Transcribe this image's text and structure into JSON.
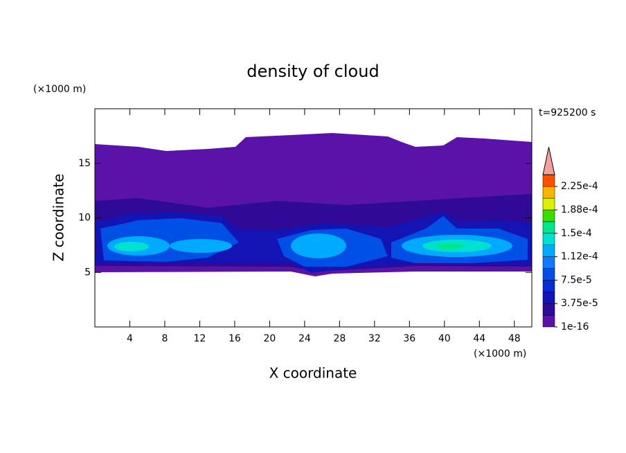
{
  "chart_data": {
    "type": "contour",
    "title": "density of cloud",
    "x_label": "X coordinate",
    "y_label": "Z coordinate",
    "x_unit": "(×1000 m)",
    "y_unit": "(×1000 m)",
    "time_label": "t=925200 s",
    "xlim": [
      0,
      50
    ],
    "xticks": [
      4,
      8,
      12,
      16,
      20,
      24,
      28,
      32,
      36,
      40,
      44,
      48
    ],
    "ylim": [
      0,
      20
    ],
    "yticks": [
      5,
      10,
      15
    ],
    "colorbar": {
      "clim": [
        1e-16,
        0.00024375
      ],
      "ticks": [
        {
          "value": 1e-16,
          "label": "1e-16"
        },
        {
          "value": 3.75e-05,
          "label": "3.75e-5"
        },
        {
          "value": 7.5e-05,
          "label": "7.5e-5"
        },
        {
          "value": 0.0001125,
          "label": "1.12e-4"
        },
        {
          "value": 0.00015,
          "label": "1.5e-4"
        },
        {
          "value": 0.0001875,
          "label": "1.88e-4"
        },
        {
          "value": 0.000225,
          "label": "2.25e-4"
        }
      ],
      "colors": [
        "#5a12a8",
        "#2e0a96",
        "#1414b4",
        "#0a2ad2",
        "#0050e6",
        "#1478ff",
        "#00aaff",
        "#00e0d0",
        "#00e68c",
        "#3cdc00",
        "#dcf000",
        "#ffb400",
        "#ff5000"
      ],
      "over_color": "#f4a0a0"
    }
  }
}
